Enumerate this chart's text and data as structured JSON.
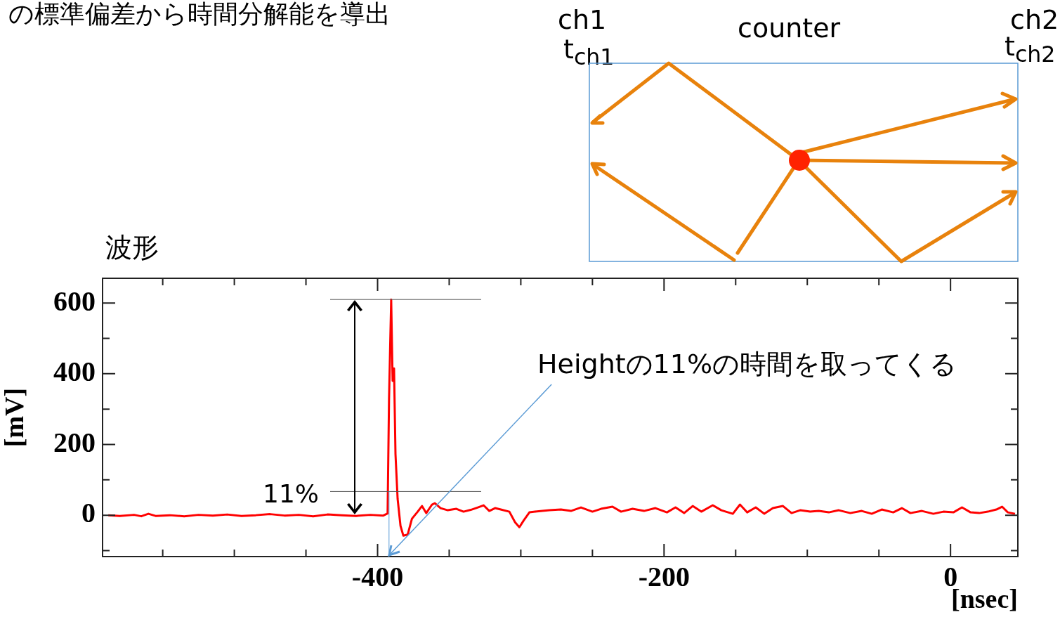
{
  "chart_data": {
    "type": "line",
    "title": "波形",
    "xlabel": "[nsec]",
    "ylabel": "[mV]",
    "annotations": [
      "の標準偏差から時間分解能を導出",
      "ch1",
      "t$_{ch1}$",
      "counter",
      "ch2",
      "t$_{ch2}$",
      {
        "text": "Heightの11%の時間を取ってくる",
        "x": -392,
        "y": -113
      },
      "11%"
    ],
    "x": [
      -588,
      -580,
      -570,
      -565,
      -560,
      -555,
      -545,
      -535,
      -525,
      -515,
      -505,
      -495,
      -485,
      -475,
      -465,
      -455,
      -445,
      -435,
      -425,
      -415,
      -405,
      -396,
      -393,
      -392,
      -390.5,
      -389.5,
      -388.5,
      -387.5,
      -386,
      -384,
      -382,
      -379,
      -376,
      -372,
      -369,
      -366,
      -362,
      -360,
      -356,
      -351,
      -345,
      -340,
      -335,
      -330,
      -326,
      -322,
      -318,
      -314,
      -308,
      -304,
      -301,
      -298,
      -294,
      -290,
      -285,
      -280,
      -272,
      -265,
      -258,
      -250,
      -244,
      -236,
      -230,
      -222,
      -214,
      -206,
      -198,
      -192,
      -186,
      -180,
      -174,
      -166,
      -160,
      -152,
      -147,
      -142,
      -136,
      -130,
      -124,
      -117,
      -111,
      -105,
      -98,
      -92,
      -85,
      -78,
      -70,
      -62,
      -55,
      -48,
      -40,
      -34,
      -28,
      -20,
      -12,
      -5,
      2,
      8,
      14,
      20,
      26,
      32,
      36,
      40,
      45
    ],
    "series": [
      {
        "color": "#ff0000",
        "values": [
          0,
          -2,
          1,
          -3,
          4,
          -2,
          0,
          -3,
          1,
          -1,
          2,
          -2,
          0,
          3,
          -1,
          1,
          -3,
          2,
          0,
          -2,
          1,
          -1,
          5,
          330,
          610,
          380,
          415,
          173,
          46,
          -30,
          -58,
          -55,
          -10,
          10,
          26,
          6,
          30,
          34,
          20,
          14,
          18,
          10,
          15,
          22,
          28,
          12,
          20,
          16,
          10,
          -20,
          -34,
          -15,
          8,
          10,
          12,
          14,
          16,
          12,
          22,
          10,
          18,
          24,
          10,
          18,
          12,
          20,
          8,
          22,
          6,
          26,
          10,
          28,
          14,
          4,
          30,
          8,
          22,
          4,
          20,
          26,
          6,
          14,
          10,
          12,
          8,
          14,
          6,
          12,
          4,
          16,
          8,
          20,
          6,
          12,
          4,
          10,
          8,
          22,
          8,
          6,
          10,
          16,
          24,
          8,
          4
        ]
      }
    ],
    "xlim": [
      -592,
      47
    ],
    "xticks": [
      {
        "value": -550,
        "label": null
      },
      {
        "value": -500,
        "label": null
      },
      {
        "value": -450,
        "label": null
      },
      -400,
      {
        "value": -350,
        "label": null
      },
      {
        "value": -300,
        "label": null
      },
      {
        "value": -250,
        "label": null
      },
      -200,
      {
        "value": -150,
        "label": null
      },
      {
        "value": -100,
        "label": null
      },
      {
        "value": -50,
        "label": null
      },
      0
    ],
    "ylim": [
      -117,
      670
    ],
    "yticks": [
      {
        "value": -100,
        "label": null
      },
      0,
      {
        "value": 100,
        "label": null
      },
      200,
      {
        "value": 300,
        "label": null
      },
      400,
      {
        "value": 500,
        "label": null
      },
      600
    ],
    "ref_lines": [
      {
        "axis": "y",
        "value": 610,
        "label": null,
        "color": "#555555"
      },
      {
        "axis": "y",
        "value": 67,
        "label": null,
        "color": "#555555"
      },
      {
        "axis": "x",
        "value": -392,
        "label": null,
        "color": "#5b9bd5"
      }
    ],
    "marker": "none",
    "line_style": "solid",
    "grid": false,
    "legend": false
  }
}
